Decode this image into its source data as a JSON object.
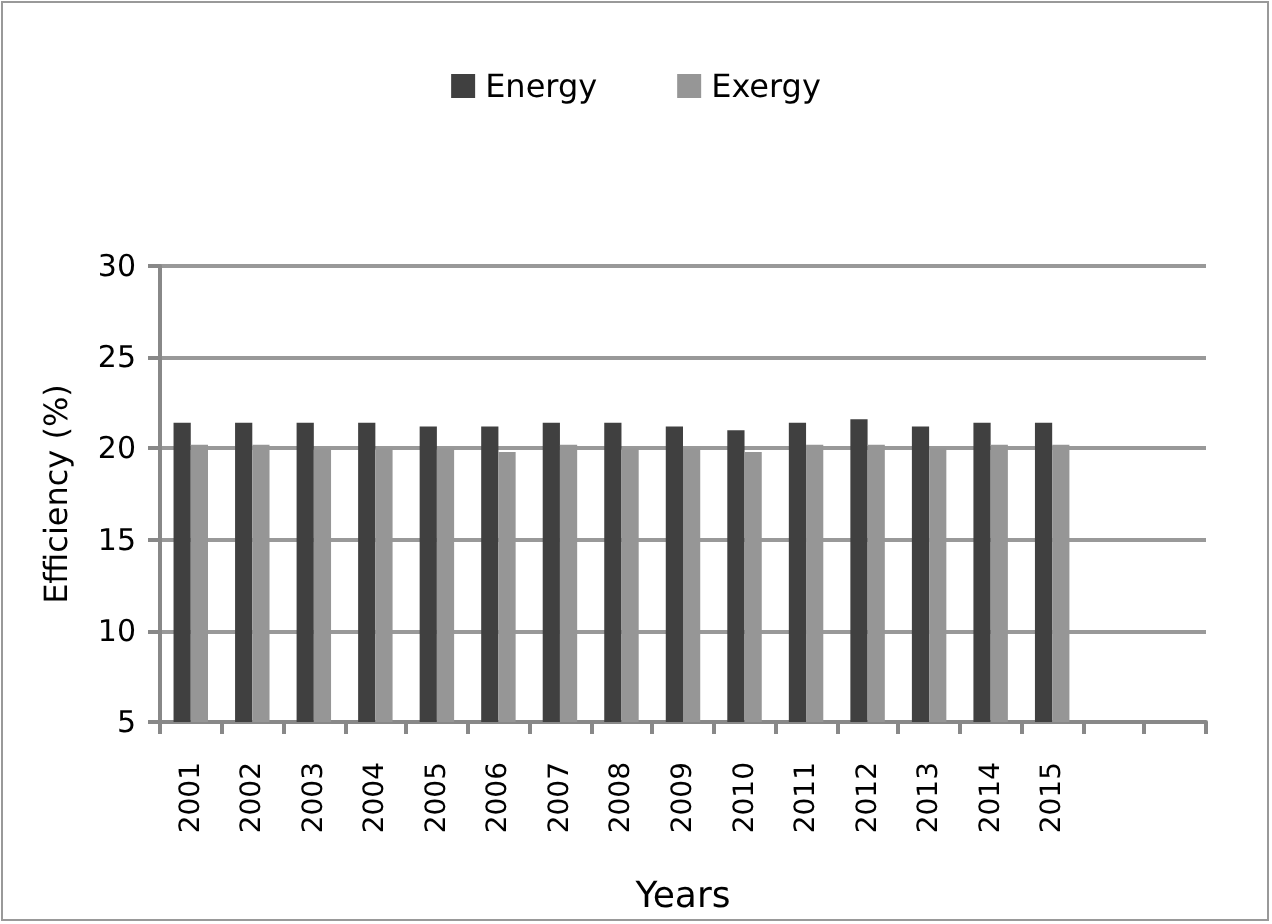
{
  "chart_data": {
    "type": "bar",
    "xlabel": "Years",
    "ylabel": "Efficiency (%)",
    "categories": [
      "2001",
      "2002",
      "2003",
      "2004",
      "2005",
      "2006",
      "2007",
      "2008",
      "2009",
      "2010",
      "2011",
      "2012",
      "2013",
      "2014",
      "2015",
      null,
      null
    ],
    "series": [
      {
        "name": "Energy",
        "color": "#404040",
        "values": [
          21.4,
          21.4,
          21.4,
          21.4,
          21.2,
          21.2,
          21.4,
          21.4,
          21.2,
          21.0,
          21.4,
          21.6,
          21.2,
          21.4,
          21.4,
          null,
          null
        ]
      },
      {
        "name": "Exergy",
        "color": "#969696",
        "values": [
          20.2,
          20.2,
          20.0,
          20.0,
          20.0,
          19.8,
          20.2,
          20.0,
          20.0,
          19.8,
          20.2,
          20.2,
          20.0,
          20.2,
          20.2,
          null,
          null
        ]
      }
    ],
    "ylim": [
      5,
      30
    ],
    "yticks": [
      5,
      10,
      15,
      20,
      25,
      30
    ],
    "grid": "y",
    "legend": "top"
  }
}
